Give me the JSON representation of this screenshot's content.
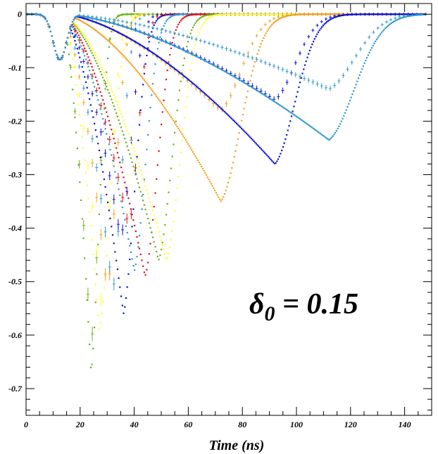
{
  "chart_data": {
    "type": "scatter",
    "title": "",
    "xlabel": "Time (ns)",
    "ylabel": "",
    "xlim": [
      0,
      150
    ],
    "ylim": [
      -0.75,
      0.02
    ],
    "x_ticks": [
      0,
      20,
      40,
      60,
      80,
      100,
      120,
      140
    ],
    "y_ticks": [
      0,
      -0.1,
      -0.2,
      -0.3,
      -0.4,
      -0.5,
      -0.6,
      -0.7
    ],
    "x_tick_labels": [
      "0",
      "20",
      "40",
      "60",
      "80",
      "100",
      "120",
      "140"
    ],
    "y_tick_labels": [
      "0",
      "-0.1",
      "-0.2",
      "-0.3",
      "-0.4",
      "-0.5",
      "-0.6",
      "-0.7"
    ],
    "grid": false,
    "legend": "none",
    "annotation": {
      "symbol": "δ",
      "subscript": "0",
      "text": " = 0.15"
    },
    "series": [
      {
        "color": "#66b21a",
        "t0": 13,
        "tmin": 24,
        "ymin": -0.67,
        "t1": 31,
        "markers": "dots"
      },
      {
        "color": "#66b21a",
        "t0": 13,
        "tmin": 24,
        "ymin": -0.62,
        "t1": 31,
        "markers": "error-bars"
      },
      {
        "color": "#ffff33",
        "t0": 13,
        "tmin": 27,
        "ymin": -0.59,
        "t1": 37,
        "markers": "dots"
      },
      {
        "color": "#ffff33",
        "t0": 13,
        "tmin": 28,
        "ymin": -0.55,
        "t1": 36,
        "markers": "error-bars"
      },
      {
        "color": "#f5a021",
        "t0": 13,
        "tmin": 30,
        "ymin": -0.52,
        "t1": 38,
        "markers": "error-bars"
      },
      {
        "color": "#3399cc",
        "t0": 13,
        "tmin": 32,
        "ymin": -0.52,
        "t1": 40,
        "markers": "error-bars"
      },
      {
        "color": "#0a12d6",
        "t0": 13,
        "tmin": 36,
        "ymin": -0.56,
        "t1": 46,
        "markers": "dots"
      },
      {
        "color": "#0a12d6",
        "t0": 13,
        "tmin": 35,
        "ymin": -0.42,
        "t1": 44,
        "markers": "error-bars"
      },
      {
        "color": "#e01010",
        "t0": 13,
        "tmin": 38,
        "ymin": -0.4,
        "t1": 46,
        "markers": "error-bars"
      },
      {
        "color": "#3399cc",
        "t0": 13,
        "tmin": 40,
        "ymin": -0.48,
        "t1": 50,
        "markers": "dots"
      },
      {
        "color": "#e01010",
        "t0": 13,
        "tmin": 44,
        "ymin": -0.49,
        "t1": 55,
        "markers": "dots"
      },
      {
        "color": "#66b21a",
        "t0": 13,
        "tmin": 49,
        "ymin": -0.46,
        "t1": 61,
        "markers": "dots"
      },
      {
        "color": "#ffff33",
        "t0": 13,
        "tmin": 52,
        "ymin": -0.46,
        "t1": 64,
        "markers": "dots"
      },
      {
        "color": "#f5a021",
        "t0": 13,
        "tmin": 72,
        "ymin": -0.35,
        "t1": 90,
        "markers": "dots"
      },
      {
        "color": "#f5a021",
        "t0": 13,
        "tmin": 72,
        "ymin": -0.18,
        "t1": 90,
        "markers": "error-bars"
      },
      {
        "color": "#0a12d6",
        "t0": 13,
        "tmin": 92,
        "ymin": -0.28,
        "t1": 110,
        "markers": "dots"
      },
      {
        "color": "#0a12d6",
        "t0": 13,
        "tmin": 92,
        "ymin": -0.16,
        "t1": 110,
        "markers": "error-bars"
      },
      {
        "color": "#3399cc",
        "t0": 13,
        "tmin": 112,
        "ymin": -0.235,
        "t1": 135,
        "markers": "dots"
      },
      {
        "color": "#3399cc",
        "t0": 13,
        "tmin": 112,
        "ymin": -0.14,
        "t1": 135,
        "markers": "error-bars"
      }
    ]
  }
}
